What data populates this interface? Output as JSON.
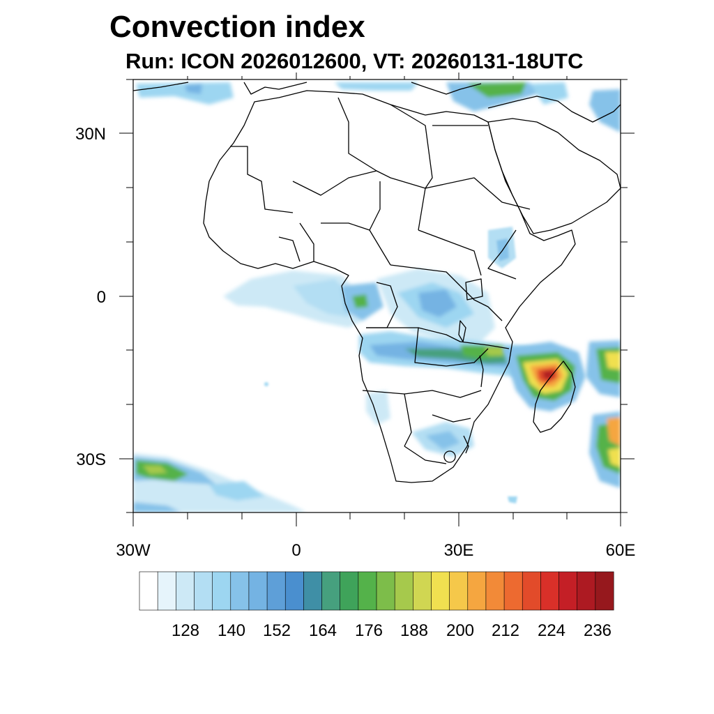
{
  "title": "Convection index",
  "subtitle": "Run: ICON 2026012600,  VT: 20260131-18UTC",
  "lat_labels": [
    "30N",
    "0",
    "30S"
  ],
  "lon_labels": [
    "30W",
    "0",
    "30E",
    "60E"
  ],
  "colorbar": {
    "tick_labels": [
      "128",
      "140",
      "152",
      "164",
      "176",
      "188",
      "200",
      "212",
      "224",
      "236"
    ],
    "colors": [
      "#ffffff",
      "#e6f4fb",
      "#cde9f6",
      "#b3def3",
      "#9dd6f1",
      "#86c2e9",
      "#74b3e3",
      "#5e9fd8",
      "#4a8fcf",
      "#3f8fa6",
      "#46a07e",
      "#3fa35a",
      "#54b24a",
      "#7dbd4a",
      "#a6c94c",
      "#d0d652",
      "#f0e050",
      "#f5c84a",
      "#f5a640",
      "#f28a38",
      "#ed6a30",
      "#e24b2a",
      "#d93029",
      "#c41f26",
      "#ad1a22",
      "#96181d"
    ]
  },
  "chart_data": {
    "type": "heatmap",
    "title": "Convection index",
    "subtitle": "Run: ICON 2026012600,  VT: 20260131-18UTC",
    "x_axis": {
      "range_deg": [
        -30,
        60
      ],
      "ticks": [
        "30W",
        "0",
        "30E",
        "60E"
      ]
    },
    "y_axis": {
      "range_deg": [
        -40,
        40
      ],
      "ticks": [
        "30N",
        "0",
        "30S"
      ]
    },
    "colorbar_levels": [
      128,
      140,
      152,
      164,
      176,
      188,
      200,
      212,
      224,
      236
    ],
    "hotspots": [
      {
        "region": "Madagascar / Mozambique Channel",
        "approx_max": 236
      },
      {
        "region": "Indian Ocean east of Madagascar",
        "approx_max": 212
      },
      {
        "region": "Southern Africa band (Angola - Zambia - Malawi)",
        "approx_max": 176
      },
      {
        "region": "Gulf of Guinea / Congo basin",
        "approx_max": 164
      },
      {
        "region": "Mediterranean",
        "approx_max": 164
      },
      {
        "region": "South Atlantic band (SW corner)",
        "approx_max": 176
      }
    ]
  }
}
